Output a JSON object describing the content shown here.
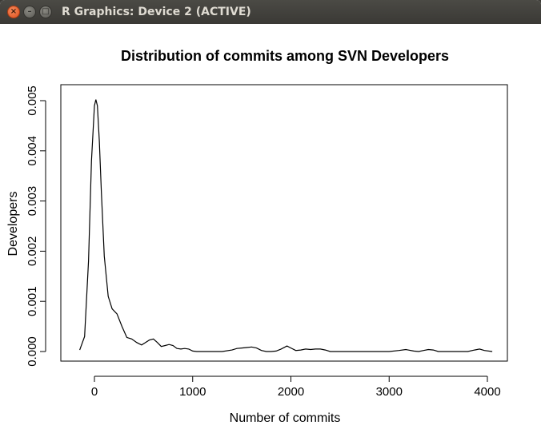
{
  "window": {
    "title": "R Graphics: Device 2 (ACTIVE)",
    "buttons": {
      "close": "×",
      "minimize": "–",
      "maximize": "□"
    }
  },
  "chart_data": {
    "type": "line",
    "title": "Distribution of commits among SVN Developers",
    "xlabel": "Number of commits",
    "ylabel": "Developers",
    "xlim": [
      -200,
      4100
    ],
    "ylim": [
      0,
      0.0052
    ],
    "x_ticks": [
      "0",
      "1000",
      "2000",
      "3000",
      "4000"
    ],
    "y_ticks": [
      "0.000",
      "0.001",
      "0.002",
      "0.003",
      "0.004",
      "0.005"
    ],
    "grid": false,
    "series": [
      {
        "x": [
          -150,
          -100,
          -60,
          -30,
          0,
          15,
          30,
          50,
          70,
          100,
          140,
          180,
          230,
          280,
          330,
          380,
          430,
          480,
          520,
          560,
          600,
          640,
          680,
          720,
          760,
          800,
          840,
          880,
          920,
          960,
          1000,
          1040,
          1100,
          1200,
          1300,
          1400,
          1450,
          1500,
          1550,
          1600,
          1650,
          1700,
          1750,
          1800,
          1850,
          1900,
          1960,
          2000,
          2050,
          2100,
          2150,
          2200,
          2250,
          2300,
          2350,
          2400,
          2500,
          2800,
          3000,
          3100,
          3170,
          3250,
          3300,
          3350,
          3400,
          3450,
          3500,
          3600,
          3700,
          3800,
          3870,
          3920,
          3970,
          4050
        ],
        "y": [
          3e-05,
          0.0003,
          0.0018,
          0.0038,
          0.0049,
          0.00502,
          0.0049,
          0.0042,
          0.0032,
          0.0019,
          0.0011,
          0.00085,
          0.00075,
          0.0005,
          0.00028,
          0.00025,
          0.00018,
          0.00013,
          0.00018,
          0.00023,
          0.00025,
          0.00018,
          0.0001,
          0.00012,
          0.00014,
          0.00012,
          6e-05,
          5e-05,
          6e-05,
          5e-05,
          1e-05,
          0.0,
          0.0,
          0.0,
          0.0,
          3e-05,
          6e-05,
          7e-05,
          8e-05,
          9e-05,
          7e-05,
          2e-05,
          0.0,
          0.0,
          1e-05,
          5e-05,
          0.00011,
          7e-05,
          2e-05,
          3e-05,
          5e-05,
          4e-05,
          5e-05,
          5e-05,
          3e-05,
          0.0,
          0.0,
          0.0,
          0.0,
          2e-05,
          4e-05,
          1e-05,
          0.0,
          2e-05,
          4e-05,
          3e-05,
          0.0,
          0.0,
          0.0,
          0.0,
          3e-05,
          5e-05,
          2e-05,
          0.0
        ]
      }
    ]
  }
}
